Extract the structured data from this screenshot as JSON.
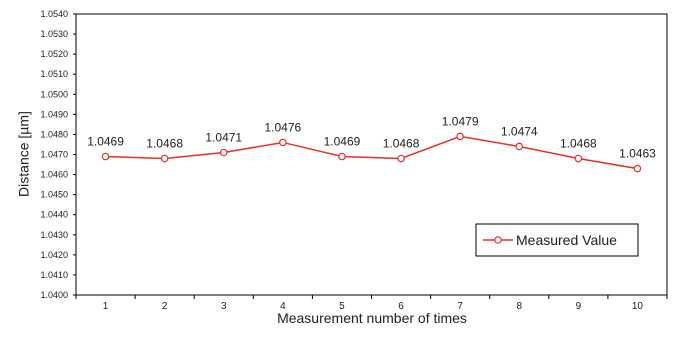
{
  "chart_data": {
    "type": "line",
    "categories": [
      "1",
      "2",
      "3",
      "4",
      "5",
      "6",
      "7",
      "8",
      "9",
      "10"
    ],
    "series": [
      {
        "name": "Measured Value",
        "values": [
          1.0469,
          1.0468,
          1.0471,
          1.0476,
          1.0469,
          1.0468,
          1.0479,
          1.0474,
          1.0468,
          1.0463
        ],
        "labels": [
          "1.0469",
          "1.0468",
          "1.0471",
          "1.0476",
          "1.0469",
          "1.0468",
          "1.0479",
          "1.0474",
          "1.0468",
          "1.0463"
        ],
        "color": "#e8312a"
      }
    ],
    "xlabel": "Measurement number of times",
    "ylabel": "Distance [µm]",
    "ylim": [
      1.04,
      1.054
    ],
    "yticks": [
      "1.0400",
      "1.0410",
      "1.0420",
      "1.0430",
      "1.0440",
      "1.0450",
      "1.0460",
      "1.0470",
      "1.0480",
      "1.0490",
      "1.0500",
      "1.0510",
      "1.0520",
      "1.0530",
      "1.0540"
    ],
    "grid": false,
    "legend_position": "bottom-right"
  }
}
